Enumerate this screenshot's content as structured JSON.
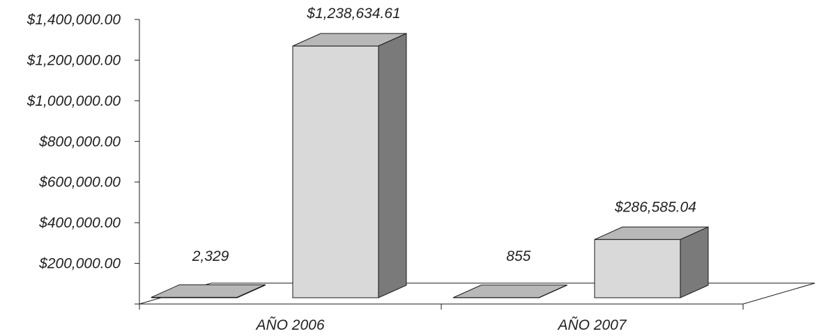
{
  "chart_data": {
    "type": "bar",
    "title": "",
    "xlabel": "",
    "ylabel": "",
    "ylim": [
      0,
      1400000
    ],
    "yticks": [
      {
        "value": 1400000,
        "label": "$1,400,000.00"
      },
      {
        "value": 1200000,
        "label": "$1,200,000.00"
      },
      {
        "value": 1000000,
        "label": "$1,000,000.00"
      },
      {
        "value": 800000,
        "label": "$800,000.00"
      },
      {
        "value": 600000,
        "label": "$600,000.00"
      },
      {
        "value": 400000,
        "label": "$400,000.00"
      },
      {
        "value": 200000,
        "label": "$200,000.00"
      }
    ],
    "categories": [
      "AÑO 2006",
      "AÑO 2007"
    ],
    "series": [
      {
        "values": [
          2329,
          855
        ],
        "labels": [
          "2,329",
          "855"
        ]
      },
      {
        "values": [
          1238634.61,
          286585.04
        ],
        "labels": [
          "$1,238,634.61",
          "$286,585.04"
        ]
      }
    ],
    "grid": false,
    "legend": "none",
    "colors": {
      "bar_front": "#d9d9d9",
      "bar_top": "#b8b8b8",
      "bar_side": "#7a7a7a",
      "floor": "#ffffff",
      "stroke": "#1a1a1a"
    }
  }
}
